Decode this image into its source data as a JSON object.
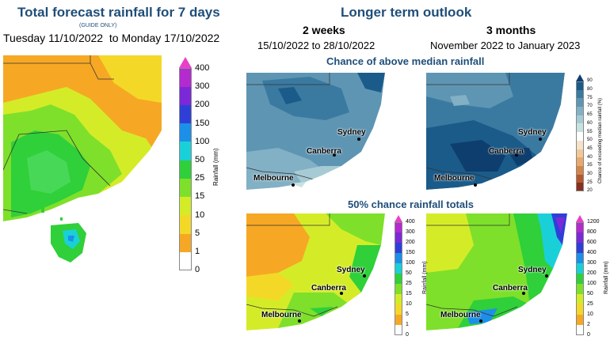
{
  "left": {
    "title": "Total forecast rainfall for 7 days",
    "subtitle": "(GUIDE ONLY)",
    "dates": "Tuesday 11/10/2022  to Monday 17/10/2022",
    "legend_label": "Rainfall (mm)",
    "legend_ticks": [
      "400",
      "300",
      "200",
      "150",
      "100",
      "50",
      "25",
      "15",
      "10",
      "5",
      "1",
      "0"
    ],
    "legend_colors": [
      "#e83fc8",
      "#b42ad0",
      "#7b29d8",
      "#2e3fd8",
      "#1c8fe8",
      "#1ad0d8",
      "#2fd03a",
      "#7ee02a",
      "#d4ec28",
      "#f4d828",
      "#f6a824",
      "#ffffff"
    ]
  },
  "right": {
    "title": "Longer term outlook",
    "col1_head": "2 weeks",
    "col1_dates": "15/10/2022 to 28/10/2022",
    "col2_head": "3 months",
    "col2_dates": "November 2022 to January 2023",
    "row1_title": "Chance of above median rainfall",
    "row2_title": "50% chance rainfall totals",
    "prob_legend_label": "Chance of exceeding median rainfall (%)",
    "prob_ticks": [
      "90",
      "80",
      "75",
      "70",
      "65",
      "60",
      "55",
      "50",
      "45",
      "40",
      "35",
      "30",
      "25",
      "20"
    ],
    "prob_colors": [
      "#0d3e6e",
      "#1a5b8a",
      "#3b7aa0",
      "#5e95b3",
      "#82b0c4",
      "#a6cbd4",
      "#c8e2e0",
      "#ffffff",
      "#f5e3c8",
      "#f0c99a",
      "#e8aa6c",
      "#d4864a",
      "#b4582e",
      "#8a2e1e"
    ],
    "rain2w_label": "Rainfall (mm)",
    "rain2w_ticks": [
      "400",
      "300",
      "200",
      "150",
      "100",
      "50",
      "25",
      "15",
      "10",
      "5",
      "1",
      "0"
    ],
    "rain3m_label": "Rainfall (mm)",
    "rain3m_ticks": [
      "1200",
      "800",
      "600",
      "400",
      "300",
      "200",
      "100",
      "50",
      "25",
      "10",
      "2",
      "0"
    ],
    "cities": {
      "sydney": "Sydney",
      "canberra": "Canberra",
      "melbourne": "Melbourne"
    }
  }
}
